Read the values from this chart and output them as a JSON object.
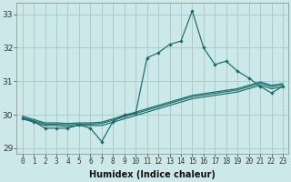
{
  "xlabel": "Humidex (Indice chaleur)",
  "bg_color": "#cce8e8",
  "grid_color": "#aacccc",
  "line_color": "#1a6b6b",
  "x_data": [
    0,
    1,
    2,
    3,
    4,
    5,
    6,
    7,
    8,
    9,
    10,
    11,
    12,
    13,
    14,
    15,
    16,
    17,
    18,
    19,
    20,
    21,
    22,
    23
  ],
  "line1": [
    29.9,
    29.8,
    29.6,
    29.6,
    29.6,
    29.7,
    29.6,
    29.2,
    29.8,
    30.0,
    30.05,
    31.7,
    31.85,
    32.1,
    32.2,
    33.1,
    32.0,
    31.5,
    31.6,
    31.3,
    31.1,
    30.85,
    30.65,
    30.85
  ],
  "line2": [
    29.88,
    29.78,
    29.68,
    29.68,
    29.65,
    29.68,
    29.68,
    29.68,
    29.78,
    29.88,
    29.98,
    30.08,
    30.18,
    30.28,
    30.38,
    30.48,
    30.53,
    30.58,
    30.63,
    30.68,
    30.78,
    30.88,
    30.78,
    30.83
  ],
  "line3": [
    29.92,
    29.82,
    29.72,
    29.72,
    29.7,
    29.72,
    29.72,
    29.74,
    29.84,
    29.94,
    30.04,
    30.14,
    30.24,
    30.34,
    30.44,
    30.54,
    30.59,
    30.64,
    30.69,
    30.74,
    30.84,
    30.94,
    30.84,
    30.89
  ],
  "line4": [
    29.96,
    29.86,
    29.76,
    29.76,
    29.74,
    29.76,
    29.76,
    29.78,
    29.88,
    29.98,
    30.08,
    30.18,
    30.28,
    30.38,
    30.48,
    30.58,
    30.63,
    30.68,
    30.73,
    30.78,
    30.88,
    30.98,
    30.88,
    30.93
  ],
  "xlim": [
    -0.5,
    23.5
  ],
  "ylim": [
    28.85,
    33.35
  ],
  "yticks": [
    29,
    30,
    31,
    32,
    33
  ],
  "xticks": [
    0,
    1,
    2,
    3,
    4,
    5,
    6,
    7,
    8,
    9,
    10,
    11,
    12,
    13,
    14,
    15,
    16,
    17,
    18,
    19,
    20,
    21,
    22,
    23
  ],
  "xlabel_fontsize": 7,
  "tick_fontsize": 5.5,
  "ytick_fontsize": 6.5
}
